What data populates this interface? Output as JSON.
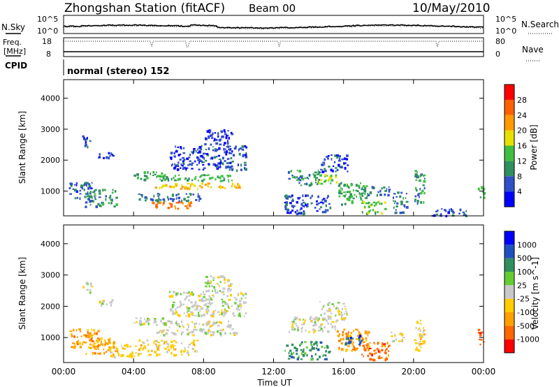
{
  "header": {
    "station": "Zhongshan Station (fitACF)",
    "beam": "Beam 00",
    "date": "10/May/2010"
  },
  "top_panels": {
    "nsky_label": "N.Sky",
    "nsearch_label": "N.Search",
    "freq_label_1": "Freq.",
    "freq_label_2": "[MHz]",
    "nave_label": "Nave",
    "cpid_label": "CPID",
    "cpid_text": "normal (stereo) 152",
    "noise_ticks": [
      "10^5",
      "10^0"
    ],
    "freq_ticks": [
      "18",
      "8"
    ],
    "nave_ticks": [
      "80",
      "0"
    ]
  },
  "colors": {
    "power": [
      "#0000ff",
      "#3050c8",
      "#2f8f5f",
      "#3fbf3f",
      "#e8e000",
      "#ff9a00",
      "#ff6000",
      "#ff0000"
    ],
    "velocity": [
      "#ff0000",
      "#ff6600",
      "#ffa000",
      "#ffcc00",
      "#c8c8c8",
      "#66cc33",
      "#2f8f5f",
      "#2050c0",
      "#0000ff"
    ]
  },
  "chart_data": [
    {
      "type": "heatmap",
      "name": "power",
      "xlabel": "",
      "ylabel": "Slant Range [km]",
      "xticks": [
        "00:00",
        "04:00",
        "08:00",
        "12:00",
        "16:00",
        "20:00",
        "00:00"
      ],
      "yticks": [
        1000,
        2000,
        3000,
        4000
      ],
      "ylim": [
        200,
        4600
      ],
      "colorbar_label": "Power [dB]",
      "colorbar_ticks": [
        4,
        8,
        12,
        16,
        20,
        24,
        28
      ],
      "clim": [
        0,
        32
      ],
      "blobs": [
        {
          "t0": 0.3,
          "t1": 1.6,
          "r0": 700,
          "r1": 1300,
          "v": 8
        },
        {
          "t0": 1.2,
          "t1": 3.0,
          "r0": 500,
          "r1": 1100,
          "v": 12
        },
        {
          "t0": 1.9,
          "t1": 2.8,
          "r0": 2050,
          "r1": 2300,
          "v": 8
        },
        {
          "t0": 1.0,
          "t1": 1.6,
          "r0": 2450,
          "r1": 2800,
          "v": 8
        },
        {
          "t0": 4.0,
          "t1": 6.0,
          "r0": 1400,
          "r1": 1650,
          "v": 14
        },
        {
          "t0": 5.4,
          "t1": 9.6,
          "r0": 1350,
          "r1": 1550,
          "v": 14
        },
        {
          "t0": 5.2,
          "t1": 10.0,
          "r0": 1100,
          "r1": 1300,
          "v": 22
        },
        {
          "t0": 5.0,
          "t1": 7.4,
          "r0": 450,
          "r1": 700,
          "v": 26
        },
        {
          "t0": 4.2,
          "t1": 7.8,
          "r0": 700,
          "r1": 950,
          "v": 10
        },
        {
          "t0": 6.0,
          "t1": 10.4,
          "r0": 1700,
          "r1": 2500,
          "v": 7
        },
        {
          "t0": 8.0,
          "t1": 9.6,
          "r0": 2500,
          "r1": 3000,
          "v": 6
        },
        {
          "t0": 12.8,
          "t1": 14.6,
          "r0": 1200,
          "r1": 1700,
          "v": 12
        },
        {
          "t0": 14.2,
          "t1": 15.6,
          "r0": 1250,
          "r1": 1550,
          "v": 18
        },
        {
          "t0": 14.6,
          "t1": 16.2,
          "r0": 1600,
          "r1": 2200,
          "v": 8
        },
        {
          "t0": 12.6,
          "t1": 15.2,
          "r0": 300,
          "r1": 900,
          "v": 8
        },
        {
          "t0": 15.6,
          "t1": 17.4,
          "r0": 600,
          "r1": 1300,
          "v": 14
        },
        {
          "t0": 16.8,
          "t1": 18.6,
          "r0": 900,
          "r1": 1200,
          "v": 10
        },
        {
          "t0": 17.0,
          "t1": 18.4,
          "r0": 300,
          "r1": 700,
          "v": 16
        },
        {
          "t0": 18.8,
          "t1": 19.6,
          "r0": 300,
          "r1": 1000,
          "v": 10
        },
        {
          "t0": 20.0,
          "t1": 20.6,
          "r0": 600,
          "r1": 1700,
          "v": 12
        },
        {
          "t0": 21.0,
          "t1": 23.0,
          "r0": 220,
          "r1": 450,
          "v": 7
        },
        {
          "t0": 23.6,
          "t1": 24.0,
          "r0": 800,
          "r1": 1300,
          "v": 16
        }
      ]
    },
    {
      "type": "heatmap",
      "name": "velocity",
      "xlabel": "Time UT",
      "ylabel": "Slant Range [km]",
      "xticks": [
        "00:00",
        "04:00",
        "08:00",
        "12:00",
        "16:00",
        "20:00",
        "00:00"
      ],
      "yticks": [
        1000,
        2000,
        3000,
        4000
      ],
      "ylim": [
        200,
        4600
      ],
      "colorbar_label": "Velocity [m s^-1]",
      "colorbar_ticks": [
        "1000",
        "500",
        "100",
        "25",
        "-25",
        "-100",
        "-500",
        "-1000"
      ],
      "blobs": [
        {
          "t0": 0.3,
          "t1": 2.2,
          "r0": 700,
          "r1": 1300,
          "v": 2
        },
        {
          "t0": 1.2,
          "t1": 3.0,
          "r0": 500,
          "r1": 1000,
          "v": 2
        },
        {
          "t0": 2.6,
          "t1": 4.2,
          "r0": 400,
          "r1": 800,
          "v": 3
        },
        {
          "t0": 1.9,
          "t1": 2.8,
          "r0": 2050,
          "r1": 2300,
          "v": 4
        },
        {
          "t0": 1.0,
          "t1": 1.6,
          "r0": 2450,
          "r1": 2800,
          "v": 4
        },
        {
          "t0": 4.0,
          "t1": 6.0,
          "r0": 1400,
          "r1": 1650,
          "v": 4
        },
        {
          "t0": 5.4,
          "t1": 9.6,
          "r0": 1350,
          "r1": 1550,
          "v": 4
        },
        {
          "t0": 5.2,
          "t1": 10.0,
          "r0": 1100,
          "r1": 1300,
          "v": 4
        },
        {
          "t0": 4.2,
          "t1": 7.6,
          "r0": 450,
          "r1": 950,
          "v": 3
        },
        {
          "t0": 6.0,
          "t1": 10.4,
          "r0": 1700,
          "r1": 2500,
          "v": 4
        },
        {
          "t0": 8.0,
          "t1": 9.6,
          "r0": 2500,
          "r1": 3000,
          "v": 4
        },
        {
          "t0": 12.8,
          "t1": 15.6,
          "r0": 1200,
          "r1": 1700,
          "v": 4
        },
        {
          "t0": 14.6,
          "t1": 16.2,
          "r0": 1600,
          "r1": 2200,
          "v": 4
        },
        {
          "t0": 12.6,
          "t1": 15.2,
          "r0": 300,
          "r1": 900,
          "v": 6
        },
        {
          "t0": 15.6,
          "t1": 17.4,
          "r0": 600,
          "r1": 1300,
          "v": 2
        },
        {
          "t0": 16.0,
          "t1": 17.0,
          "r0": 800,
          "r1": 1100,
          "v": 7
        },
        {
          "t0": 17.0,
          "t1": 18.6,
          "r0": 300,
          "r1": 900,
          "v": 1
        },
        {
          "t0": 18.6,
          "t1": 19.4,
          "r0": 900,
          "r1": 1200,
          "v": 4
        },
        {
          "t0": 20.0,
          "t1": 20.6,
          "r0": 600,
          "r1": 1700,
          "v": 3
        },
        {
          "t0": 23.6,
          "t1": 24.0,
          "r0": 800,
          "r1": 1300,
          "v": 1
        }
      ]
    }
  ]
}
